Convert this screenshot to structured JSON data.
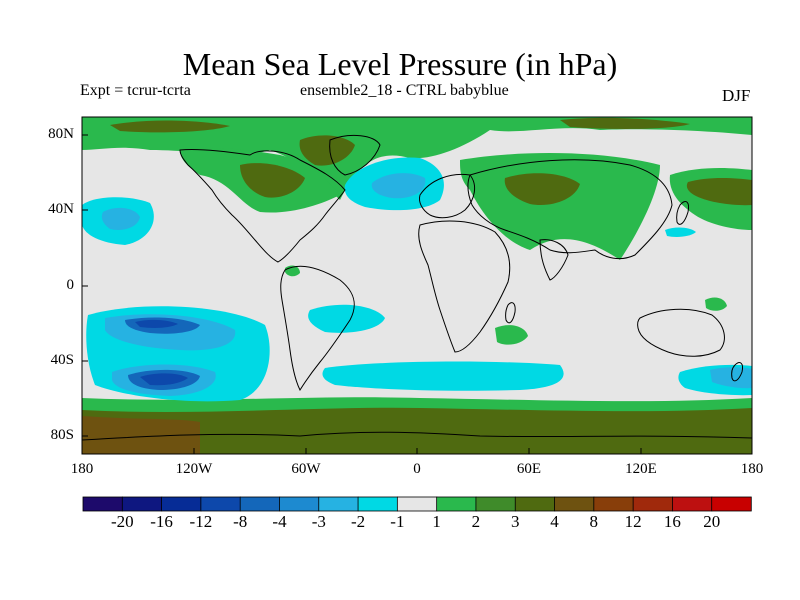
{
  "title": "Mean Sea Level Pressure (in hPa)",
  "expt": "Expt = tcrur-tcrta",
  "subtitle": "ensemble2_18 - CTRL babyblue",
  "season": "DJF",
  "lat_labels": [
    "80N",
    "40N",
    "0",
    "40S",
    "80S"
  ],
  "lon_labels": [
    "180",
    "120W",
    "60W",
    "0",
    "60E",
    "120E",
    "180"
  ],
  "colorbar": {
    "labels": [
      "-20",
      "-16",
      "-12",
      "-8",
      "-4",
      "-3",
      "-2",
      "-1",
      "1",
      "2",
      "3",
      "4",
      "8",
      "12",
      "16",
      "20"
    ],
    "colors": [
      "#1d0a6b",
      "#0e1780",
      "#062c96",
      "#0d48ab",
      "#1467ba",
      "#1d8ad0",
      "#26b2e2",
      "#00d9e4",
      "#e6e6e6",
      "#2ab94d",
      "#3f8b2a",
      "#4f6a10",
      "#6e5210",
      "#883e0a",
      "#a0290c",
      "#bd1010",
      "#c80000"
    ]
  },
  "map": {
    "fill_color": "#e6e6e6",
    "coast_color": "#000000"
  }
}
